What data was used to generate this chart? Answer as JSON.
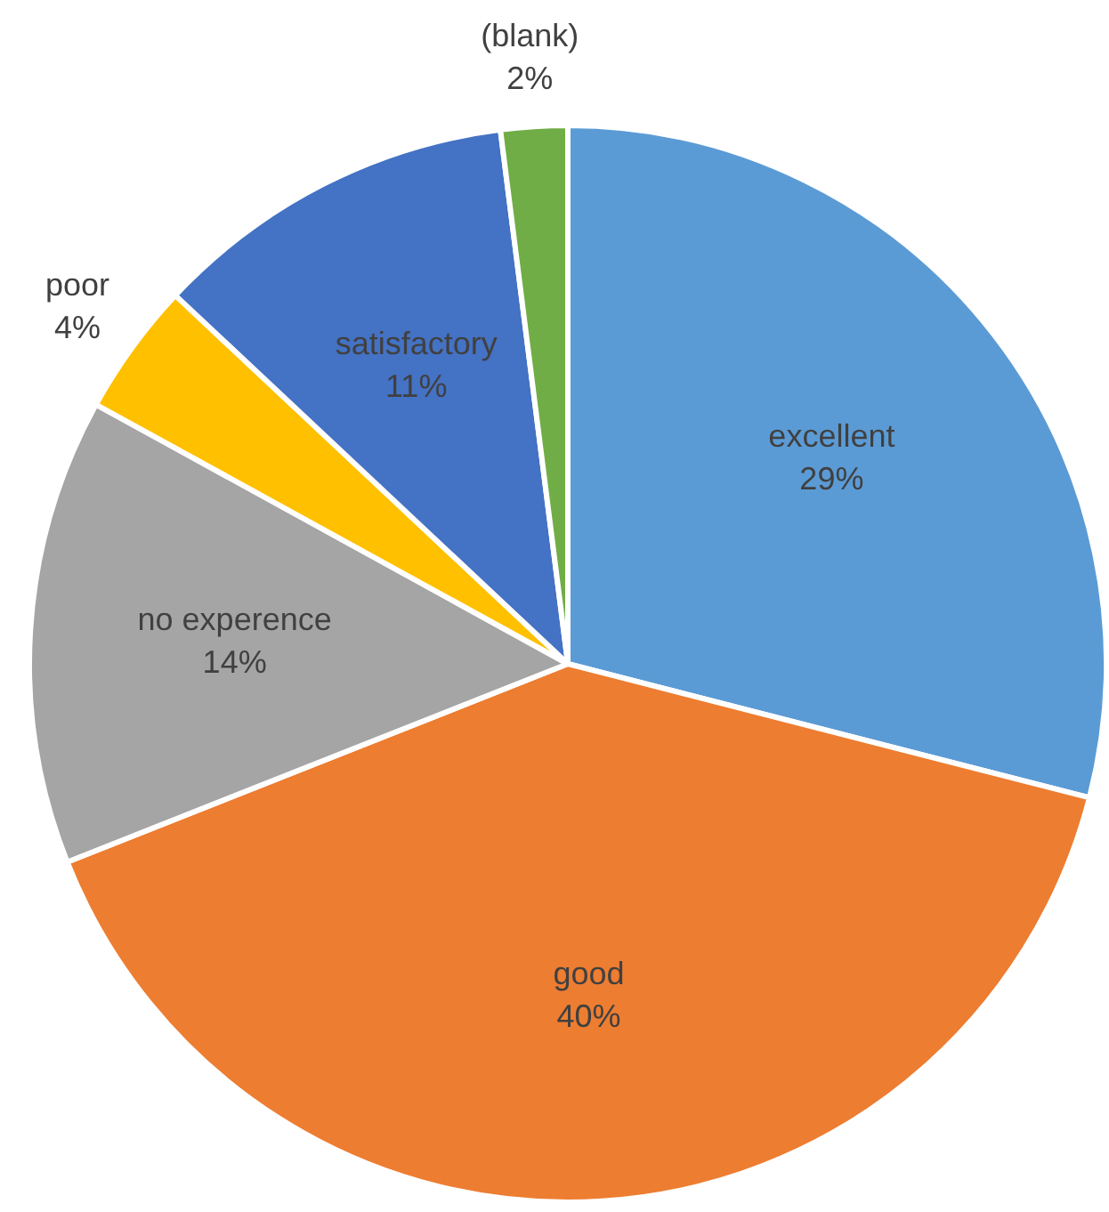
{
  "chart_data": {
    "type": "pie",
    "categories": [
      "excellent",
      "good",
      "no experence",
      "poor",
      "satisfactory",
      "(blank)"
    ],
    "values": [
      29,
      40,
      14,
      4,
      11,
      2
    ],
    "value_labels": [
      "29%",
      "40%",
      "14%",
      "4%",
      "11%",
      "2%"
    ],
    "colors": [
      "#5b9bd5",
      "#ed7d31",
      "#a5a5a5",
      "#ffc000",
      "#4472c4",
      "#70ad47"
    ],
    "legend": false
  }
}
